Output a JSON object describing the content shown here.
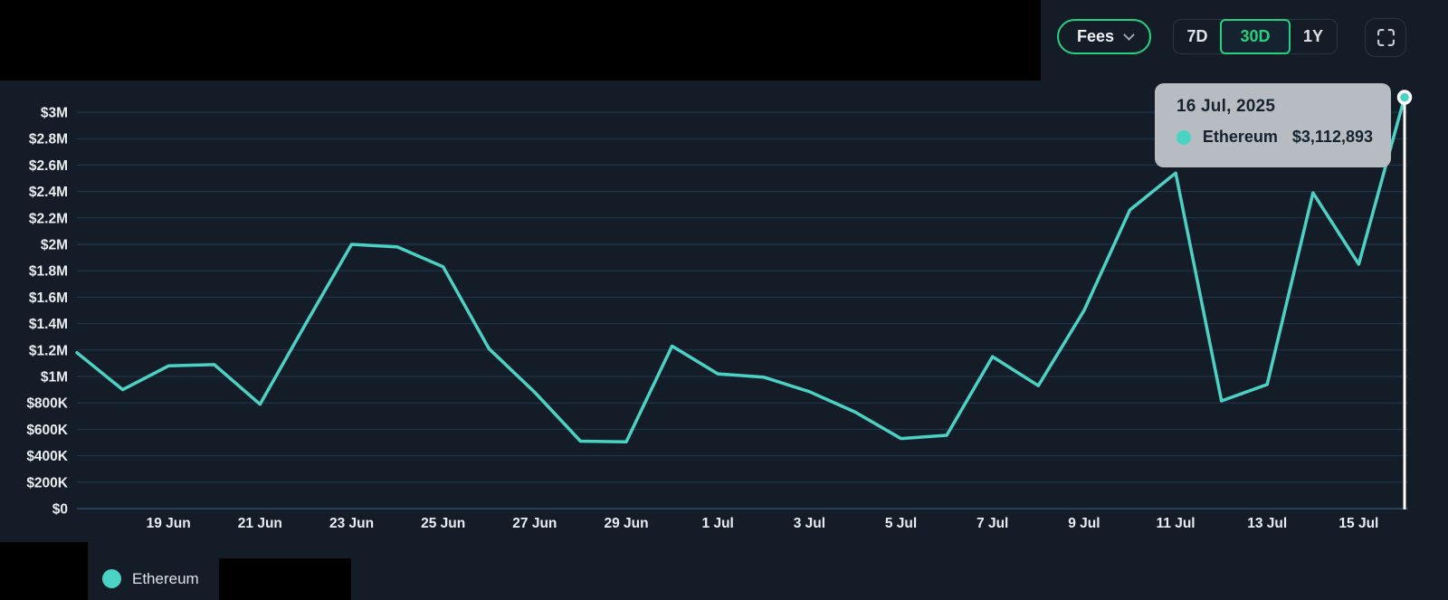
{
  "controls": {
    "metric_dropdown": {
      "label": "Fees"
    },
    "range_tabs": [
      {
        "label": "7D",
        "selected": false
      },
      {
        "label": "30D",
        "selected": true
      },
      {
        "label": "1Y",
        "selected": false
      }
    ],
    "fullscreen_icon": "fullscreen-expand-icon"
  },
  "tooltip": {
    "date": "16 Jul, 2025",
    "series_name": "Ethereum",
    "value": "$3,112,893"
  },
  "legend": {
    "label": "Ethereum",
    "color": "#4ad3c5"
  },
  "colors": {
    "background": "#141d27",
    "line_teal": "#4ad3c5",
    "accent_green": "#24d17e",
    "gridline": "#1f3a55",
    "tooltip_bg": "#b6bcc2",
    "crosshair": "#ffffff"
  },
  "chart_data": {
    "type": "line",
    "title": "",
    "xlabel": "",
    "ylabel": "",
    "ylim": [
      0,
      3000000
    ],
    "grid": "horizontal",
    "legend_position": "bottom-left",
    "x": [
      "17 Jun",
      "18 Jun",
      "19 Jun",
      "20 Jun",
      "21 Jun",
      "22 Jun",
      "23 Jun",
      "24 Jun",
      "25 Jun",
      "26 Jun",
      "27 Jun",
      "28 Jun",
      "29 Jun",
      "30 Jun",
      "1 Jul",
      "2 Jul",
      "3 Jul",
      "4 Jul",
      "5 Jul",
      "6 Jul",
      "7 Jul",
      "8 Jul",
      "9 Jul",
      "10 Jul",
      "11 Jul",
      "12 Jul",
      "13 Jul",
      "14 Jul",
      "15 Jul",
      "16 Jul"
    ],
    "x_tick_labels": [
      "19 Jun",
      "21 Jun",
      "23 Jun",
      "25 Jun",
      "27 Jun",
      "29 Jun",
      "1 Jul",
      "3 Jul",
      "5 Jul",
      "7 Jul",
      "9 Jul",
      "11 Jul",
      "13 Jul",
      "15 Jul"
    ],
    "y_ticks": [
      {
        "value": 0,
        "label": "$0"
      },
      {
        "value": 200000,
        "label": "$200K"
      },
      {
        "value": 400000,
        "label": "$400K"
      },
      {
        "value": 600000,
        "label": "$600K"
      },
      {
        "value": 800000,
        "label": "$800K"
      },
      {
        "value": 1000000,
        "label": "$1M"
      },
      {
        "value": 1200000,
        "label": "$1.2M"
      },
      {
        "value": 1400000,
        "label": "$1.4M"
      },
      {
        "value": 1600000,
        "label": "$1.6M"
      },
      {
        "value": 1800000,
        "label": "$1.8M"
      },
      {
        "value": 2000000,
        "label": "$2M"
      },
      {
        "value": 2200000,
        "label": "$2.2M"
      },
      {
        "value": 2400000,
        "label": "$2.4M"
      },
      {
        "value": 2600000,
        "label": "$2.6M"
      },
      {
        "value": 2800000,
        "label": "$2.8M"
      },
      {
        "value": 3000000,
        "label": "$3M"
      }
    ],
    "series": [
      {
        "name": "Ethereum",
        "color": "#4ad3c5",
        "values": [
          1180000,
          900000,
          1080000,
          1090000,
          790000,
          1400000,
          2000000,
          1980000,
          1830000,
          1210000,
          880000,
          510000,
          505000,
          1230000,
          1020000,
          995000,
          885000,
          730000,
          530000,
          555000,
          1150000,
          930000,
          1500000,
          2260000,
          2540000,
          815000,
          940000,
          2390000,
          1850000,
          3112893
        ]
      }
    ],
    "highlight": {
      "x_label": "16 Jul",
      "date_label": "16 Jul, 2025",
      "series": "Ethereum",
      "value": 3112893
    }
  }
}
